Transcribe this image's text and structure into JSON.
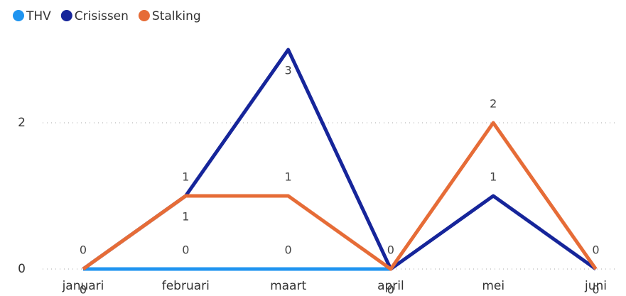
{
  "chart_data": {
    "type": "line",
    "categories": [
      "januari",
      "februari",
      "maart",
      "april",
      "mei",
      "juni"
    ],
    "series": [
      {
        "name": "THV",
        "color": "#1f94f0",
        "values": [
          0,
          0,
          0,
          0,
          null,
          null
        ]
      },
      {
        "name": "Crisissen",
        "color": "#16259a",
        "values": [
          0,
          1,
          3,
          0,
          1,
          0
        ]
      },
      {
        "name": "Stalking",
        "color": "#e66c37",
        "values": [
          0,
          1,
          1,
          0,
          2,
          0
        ]
      }
    ],
    "ylim": [
      0,
      3
    ],
    "yticks": [
      0,
      2
    ],
    "grid": true,
    "legend": "top-left"
  }
}
